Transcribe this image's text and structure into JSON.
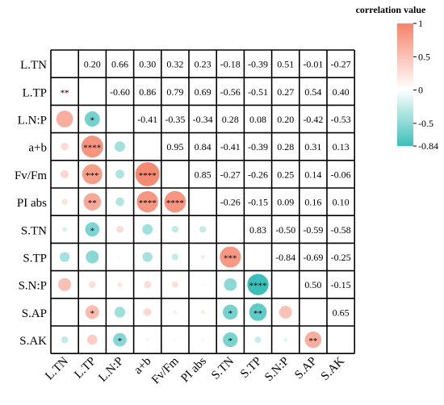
{
  "chart_data": {
    "type": "heatmap",
    "variables": [
      "L.TN",
      "L.TP",
      "L.N:P",
      "a+b",
      "Fv/Fm",
      "PI abs",
      "S.TN",
      "S.TP",
      "S.N:P",
      "S.AP",
      "S.AK"
    ],
    "upper_triangle_values": [
      [
        null,
        "0.20",
        "0.66",
        "0.30",
        "0.32",
        "0.23",
        "-0.18",
        "-0.39",
        "0.51",
        "-0.01",
        "-0.27"
      ],
      [
        null,
        null,
        "-0.60",
        "0.86",
        "0.79",
        "0.69",
        "-0.56",
        "-0.51",
        "0.27",
        "0.54",
        "0.40"
      ],
      [
        null,
        null,
        null,
        "-0.41",
        "-0.35",
        "-0.34",
        "0.28",
        "0.08",
        "0.20",
        "-0.42",
        "-0.53"
      ],
      [
        null,
        null,
        null,
        null,
        "0.95",
        "0.84",
        "-0.41",
        "-0.39",
        "0.28",
        "0.31",
        "0.13"
      ],
      [
        null,
        null,
        null,
        null,
        null,
        "0.85",
        "-0.27",
        "-0.26",
        "0.25",
        "0.14",
        "-0.06"
      ],
      [
        null,
        null,
        null,
        null,
        null,
        null,
        "-0.26",
        "-0.15",
        "0.09",
        "0.16",
        "0.10"
      ],
      [
        null,
        null,
        null,
        null,
        null,
        null,
        null,
        "0.83",
        "-0.50",
        "-0.59",
        "-0.58"
      ],
      [
        null,
        null,
        null,
        null,
        null,
        null,
        null,
        null,
        "-0.84",
        "-0.69",
        "-0.25"
      ],
      [
        null,
        null,
        null,
        null,
        null,
        null,
        null,
        null,
        null,
        "0.50",
        "-0.15"
      ],
      [
        null,
        null,
        null,
        null,
        null,
        null,
        null,
        null,
        null,
        null,
        "0.65"
      ],
      [
        null,
        null,
        null,
        null,
        null,
        null,
        null,
        null,
        null,
        null,
        null
      ]
    ],
    "significance": [
      [
        1,
        0,
        "**"
      ],
      [
        2,
        1,
        "*"
      ],
      [
        3,
        1,
        "****"
      ],
      [
        4,
        1,
        "***"
      ],
      [
        4,
        3,
        "****"
      ],
      [
        5,
        1,
        "**"
      ],
      [
        5,
        3,
        "****"
      ],
      [
        5,
        4,
        "****"
      ],
      [
        6,
        1,
        "*"
      ],
      [
        7,
        6,
        "***"
      ],
      [
        8,
        7,
        "****"
      ],
      [
        9,
        1,
        "*"
      ],
      [
        9,
        6,
        "*"
      ],
      [
        9,
        7,
        "**"
      ],
      [
        10,
        2,
        "*"
      ],
      [
        10,
        6,
        "*"
      ],
      [
        10,
        9,
        "**"
      ]
    ],
    "legend": {
      "title": "correlation value",
      "ticks": [
        "1",
        "0.5",
        "0",
        "-0.5",
        "-0.84"
      ],
      "tick_values": [
        1,
        0.5,
        0,
        -0.5,
        -0.84
      ],
      "colors": {
        "high": "#f4836b",
        "mid": "#ffffff",
        "low": "#3dbfb9"
      }
    }
  }
}
